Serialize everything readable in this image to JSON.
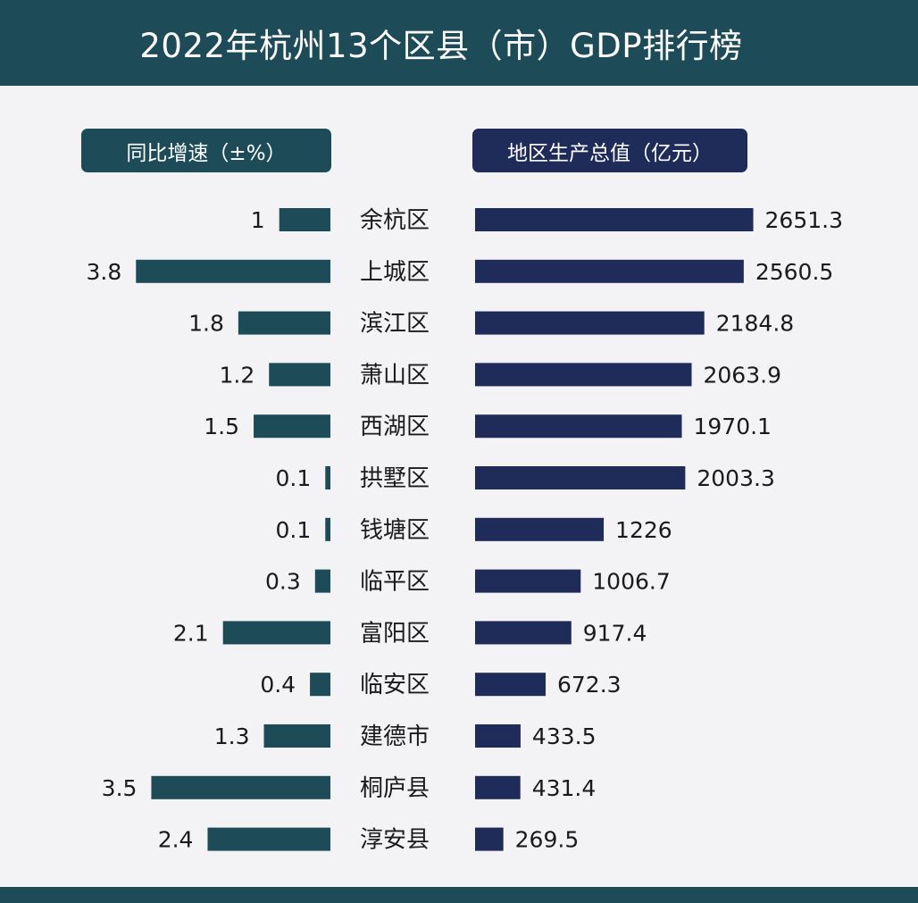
{
  "title": "2022年杭州13个区县（市）GDP排行榜",
  "chart_data": {
    "type": "bar",
    "title": "2022年杭州13个区县（市）GDP排行榜",
    "categories": [
      "余杭区",
      "上城区",
      "滨江区",
      "萧山区",
      "西湖区",
      "拱墅区",
      "钱塘区",
      "临平区",
      "富阳区",
      "临安区",
      "建德市",
      "桐庐县",
      "淳安县"
    ],
    "series": [
      {
        "name": "同比增速（±%）",
        "values": [
          1,
          3.8,
          1.8,
          1.2,
          1.5,
          0.1,
          0.1,
          0.3,
          2.1,
          0.4,
          1.3,
          3.5,
          2.4
        ],
        "labels": [
          "1",
          "3.8",
          "1.8",
          "1.2",
          "1.5",
          "0.1",
          "0.1",
          "0.3",
          "2.1",
          "0.4",
          "1.3",
          "3.5",
          "2.4"
        ],
        "color": "#1d4b57"
      },
      {
        "name": "地区生产总值（亿元）",
        "values": [
          2651.3,
          2560.5,
          2184.8,
          2063.9,
          1970.1,
          2003.3,
          1226,
          1006.7,
          917.4,
          672.3,
          433.5,
          431.4,
          269.5
        ],
        "labels": [
          "2651.3",
          "2560.5",
          "2184.8",
          "2063.9",
          "1970.1",
          "2003.3",
          "1226",
          "1006.7",
          "917.4",
          "672.3",
          "433.5",
          "431.4",
          "269.5"
        ],
        "color": "#1f2b58"
      }
    ],
    "grid": false
  }
}
